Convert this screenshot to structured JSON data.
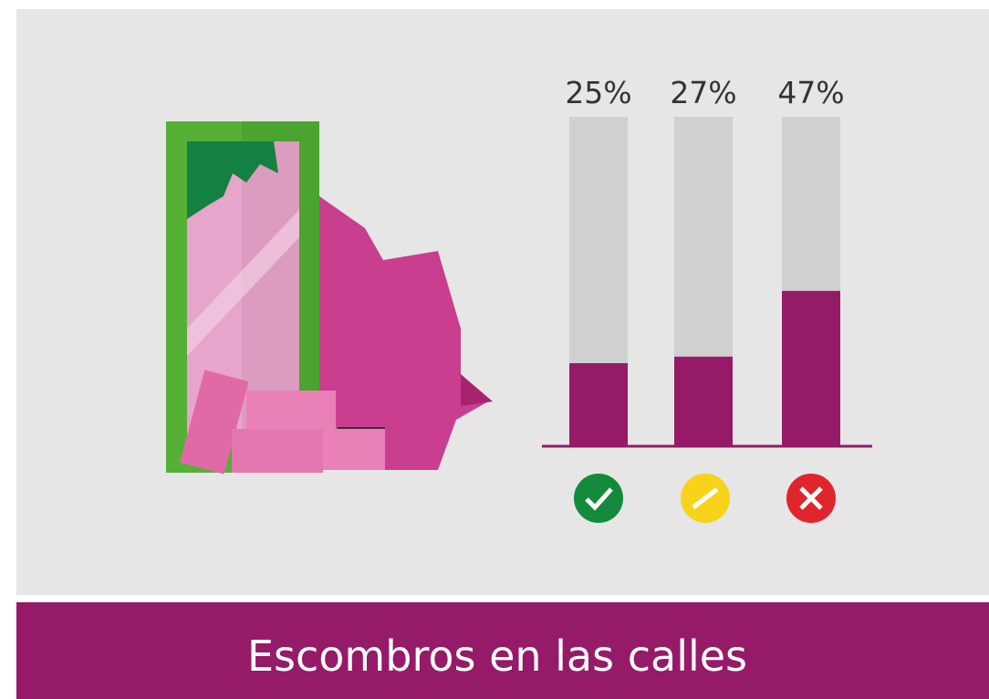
{
  "chart_data": {
    "type": "bar",
    "title": "Escombros en las calles",
    "categories": [
      null,
      null,
      null
    ],
    "values": [
      25,
      27,
      47
    ],
    "value_labels": [
      "25%",
      "27%",
      "47%"
    ],
    "color": "#951a68",
    "ylim": [
      0,
      100
    ]
  }
}
